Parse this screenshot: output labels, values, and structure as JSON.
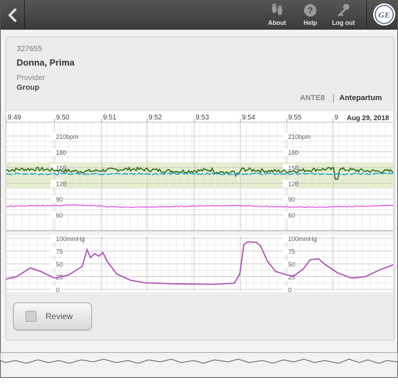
{
  "toolbar": {
    "back_label": "Back",
    "about": "About",
    "help": "Help",
    "logout": "Log out",
    "logo_text": "GE"
  },
  "patient": {
    "id": "327655",
    "name": "Donna, Prima",
    "provider_label": "Provider",
    "provider_value": "Group",
    "bed": "ANTE8",
    "unit": "Antepartum"
  },
  "strip": {
    "time_labels": [
      "9:49",
      "9:50",
      "9:51",
      "9:52",
      "9:53",
      "9:54",
      "9:55",
      "9"
    ],
    "date": "Aug 29, 2018",
    "fhr_scale": [
      "210",
      "180",
      "150",
      "120",
      "90",
      "60"
    ],
    "fhr_unit": "bpm",
    "ua_scale": [
      "100",
      "75",
      "50",
      "25",
      "0"
    ],
    "ua_unit": "mmHg",
    "colors": {
      "fhr1": "#2e6b1c",
      "fhr2": "#2aa0c8",
      "mhr": "#e040e0",
      "ua": "#b050b8",
      "normal_band": "#e3eecc",
      "grid_major": "#c8c8c8",
      "grid_minor": "#ececec"
    }
  },
  "review_button": {
    "label": "Review"
  }
}
